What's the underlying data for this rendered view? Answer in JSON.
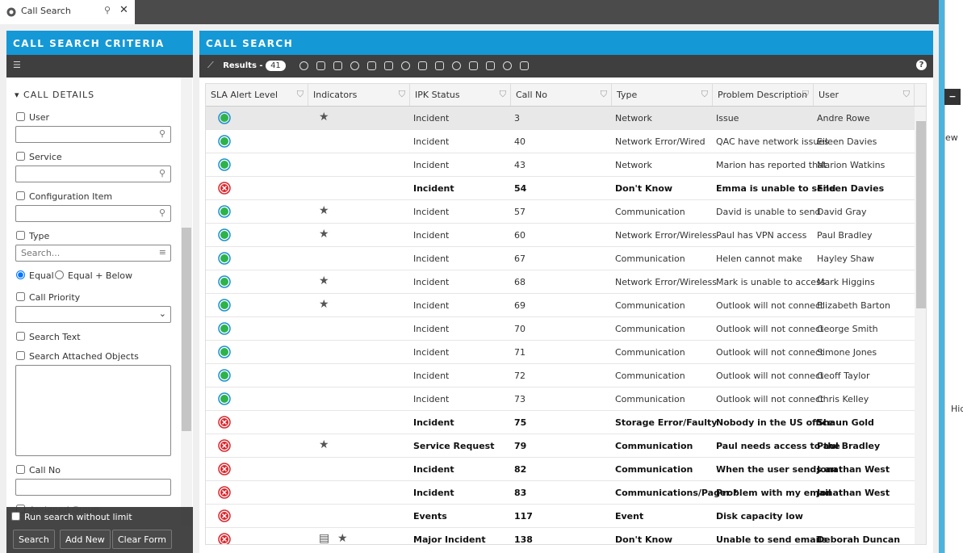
{
  "tab": {
    "title": "Call Search"
  },
  "criteria": {
    "title": "CALL SEARCH CRITERIA",
    "section": "CALL DETAILS",
    "fields": {
      "user": "User",
      "service": "Service",
      "ci": "Configuration Item",
      "type": "Type",
      "type_placeholder": "Search...",
      "equal": "Equal",
      "equal_below": "Equal + Below",
      "priority": "Call Priority",
      "search_text": "Search Text",
      "attached": "Search Attached Objects",
      "call_no": "Call No",
      "assigned": "Assigned Group"
    },
    "no_limit": "Run search without limit",
    "buttons": [
      "Search",
      "Add New",
      "Clear Form"
    ]
  },
  "results": {
    "title": "CALL SEARCH",
    "label": "Results -",
    "count": 41,
    "help": "?",
    "columns": [
      "SLA Alert Level",
      "Indicators",
      "IPK Status",
      "Call No",
      "Type",
      "Problem Description",
      "User"
    ],
    "rows": [
      {
        "sla": "green",
        "ind": [
          "star"
        ],
        "bold": false,
        "cells": [
          "Incident",
          3,
          "Network",
          "Issue",
          "Andre Rowe"
        ]
      },
      {
        "sla": "green",
        "ind": [],
        "bold": false,
        "cells": [
          "Incident",
          40,
          "Network Error/Wired",
          "QAC have network issues",
          "Eileen Davies"
        ]
      },
      {
        "sla": "green",
        "ind": [],
        "bold": false,
        "cells": [
          "Incident",
          43,
          "Network",
          "Marion has reported that",
          "Marion Watkins"
        ]
      },
      {
        "sla": "red",
        "ind": [],
        "bold": true,
        "cells": [
          "Incident",
          54,
          "Don't Know",
          "Emma is unable to send",
          "Eileen Davies"
        ]
      },
      {
        "sla": "green",
        "ind": [
          "star"
        ],
        "bold": false,
        "cells": [
          "Incident",
          57,
          "Communication",
          "David is unable to send",
          "David Gray"
        ]
      },
      {
        "sla": "green",
        "ind": [
          "star"
        ],
        "bold": false,
        "cells": [
          "Incident",
          60,
          "Network Error/Wireless",
          "Paul has VPN access",
          "Paul Bradley"
        ]
      },
      {
        "sla": "green",
        "ind": [],
        "bold": false,
        "cells": [
          "Incident",
          67,
          "Communication",
          "Helen cannot make",
          "Hayley Shaw"
        ]
      },
      {
        "sla": "green",
        "ind": [
          "star"
        ],
        "bold": false,
        "cells": [
          "Incident",
          68,
          "Network Error/Wireless",
          "Mark is unable to access",
          "Mark Higgins"
        ]
      },
      {
        "sla": "green",
        "ind": [
          "star"
        ],
        "bold": false,
        "cells": [
          "Incident",
          69,
          "Communication",
          "Outlook will not connect",
          "Elizabeth Barton"
        ]
      },
      {
        "sla": "green",
        "ind": [],
        "bold": false,
        "cells": [
          "Incident",
          70,
          "Communication",
          "Outlook will not connect",
          "George Smith"
        ]
      },
      {
        "sla": "green",
        "ind": [],
        "bold": false,
        "cells": [
          "Incident",
          71,
          "Communication",
          "Outlook will not connect",
          "Simone Jones"
        ]
      },
      {
        "sla": "green",
        "ind": [],
        "bold": false,
        "cells": [
          "Incident",
          72,
          "Communication",
          "Outlook will not connect",
          "Geoff Taylor"
        ]
      },
      {
        "sla": "green",
        "ind": [],
        "bold": false,
        "cells": [
          "Incident",
          73,
          "Communication",
          "Outlook will not connect",
          "Chris Kelley"
        ]
      },
      {
        "sla": "red",
        "ind": [],
        "bold": true,
        "cells": [
          "Incident",
          75,
          "Storage Error/Faulty",
          "Nobody in the US office",
          "Shaun Gold"
        ]
      },
      {
        "sla": "red",
        "ind": [
          "star"
        ],
        "bold": true,
        "cells": [
          "Service Request",
          79,
          "Communication",
          "Paul needs access to the",
          "Paul Bradley"
        ]
      },
      {
        "sla": "red",
        "ind": [],
        "bold": true,
        "cells": [
          "Incident",
          82,
          "Communication",
          "When the user sends an",
          "Jonathan West"
        ]
      },
      {
        "sla": "red",
        "ind": [],
        "bold": true,
        "cells": [
          "Incident",
          83,
          "Communications/Pager *",
          "Problem with my email",
          "Jonathan West"
        ]
      },
      {
        "sla": "red",
        "ind": [],
        "bold": true,
        "cells": [
          "Events",
          117,
          "Event",
          "Disk capacity low",
          ""
        ]
      },
      {
        "sla": "red",
        "ind": [
          "note",
          "star"
        ],
        "bold": true,
        "cells": [
          "Major Incident",
          138,
          "Don't Know",
          "Unable to send emails",
          "Deborah Duncan"
        ]
      }
    ]
  },
  "side": {
    "btn": "−",
    "ew": "ew",
    "hid": "Hid"
  }
}
